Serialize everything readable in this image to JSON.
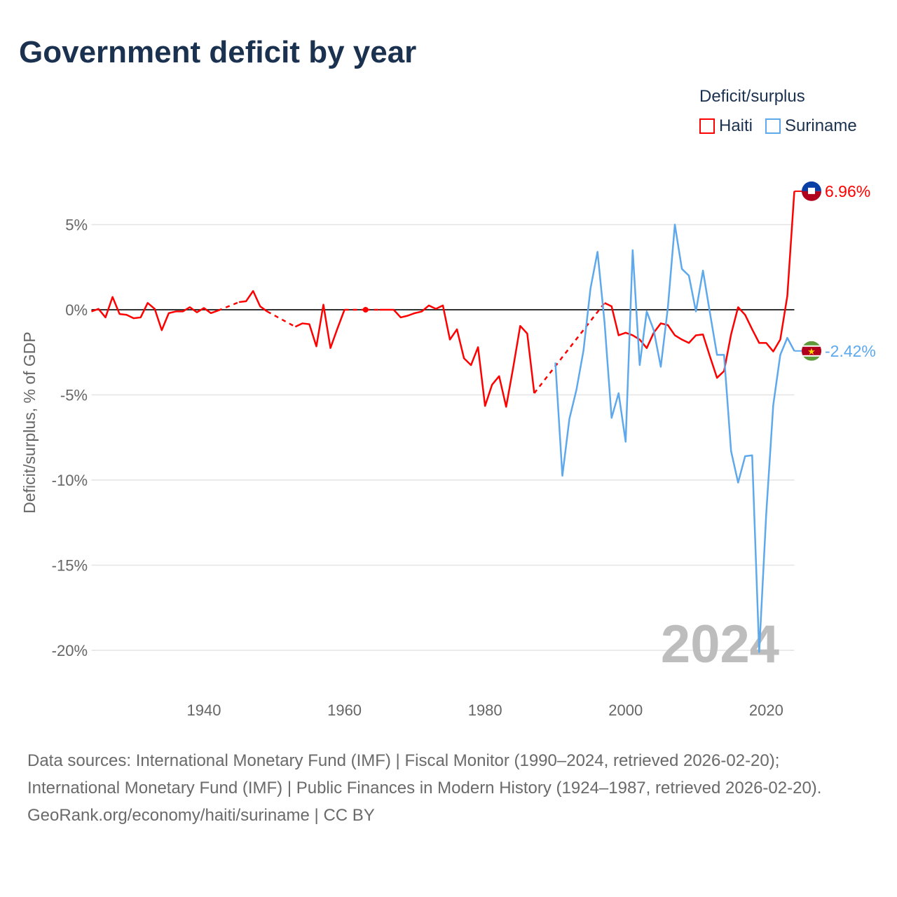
{
  "title": "Government deficit by year",
  "legend": {
    "title": "Deficit/surplus",
    "items": [
      {
        "label": "Haiti",
        "color": "#ff0000"
      },
      {
        "label": "Suriname",
        "color": "#5ea8ec"
      }
    ]
  },
  "year_watermark": "2024",
  "footer": {
    "sources": "Data sources: International Monetary Fund (IMF) | Fiscal Monitor (1990–2024, retrieved 2026-02-20); International Monetary Fund (IMF) | Public Finances in Modern History (1924–1987, retrieved 2026-02-20).",
    "credit": "GeoRank.org/economy/haiti/suriname | CC BY"
  },
  "chart_data": {
    "type": "line",
    "title": "Government deficit by year",
    "xlabel": "",
    "ylabel": "Deficit/surplus, % of GDP",
    "xlim": [
      1924,
      2024
    ],
    "ylim": [
      -22,
      8
    ],
    "x_ticks": [
      1940,
      1960,
      1980,
      2000,
      2020
    ],
    "x_tick_labels": [
      "1940",
      "1960",
      "1980",
      "2000",
      "2020"
    ],
    "y_ticks": [
      5,
      0,
      -5,
      -10,
      -15,
      -20
    ],
    "y_tick_labels": [
      "5%",
      "0%",
      "-5%",
      "-10%",
      "-15%",
      "-20%"
    ],
    "grid": true,
    "legend_position": "top-right",
    "series": [
      {
        "name": "Haiti",
        "color": "#ff0000",
        "end_label": "6.96%",
        "start_year": 1924,
        "values": [
          -0.1,
          0.05,
          -0.45,
          0.75,
          -0.25,
          -0.3,
          -0.5,
          -0.45,
          0.4,
          0.05,
          -1.2,
          -0.2,
          -0.1,
          -0.1,
          0.15,
          -0.15,
          0.1,
          -0.2,
          -0.05,
          null,
          null,
          0.45,
          0.5,
          1.1,
          0.2,
          -0.1,
          null,
          null,
          null,
          -1.0,
          -0.8,
          -0.85,
          -2.15,
          0.3,
          -2.25,
          -1.1,
          0,
          null,
          null,
          0,
          null,
          0,
          0,
          0,
          -0.45,
          -0.35,
          -0.2,
          -0.1,
          0.25,
          0.05,
          0.25,
          -1.75,
          -1.15,
          -2.85,
          -3.25,
          -2.2,
          -5.65,
          -4.4,
          -3.9,
          -5.7,
          -3.4,
          -0.95,
          -1.4,
          -4.9,
          null,
          null,
          null,
          null,
          null,
          null,
          null,
          null,
          null,
          0.4,
          0.2,
          -1.5,
          -1.35,
          -1.5,
          -1.75,
          -2.25,
          -1.35,
          -0.8,
          -0.9,
          -1.5,
          -1.75,
          -1.95,
          -1.5,
          -1.45,
          -2.75,
          -4.0,
          -3.6,
          -1.45,
          0.15,
          -0.3,
          -1.15,
          -1.95,
          -1.95,
          -2.45,
          -1.75,
          0.8,
          6.96
        ]
      },
      {
        "name": "Suriname",
        "color": "#5ea8ec",
        "end_label": "-2.42%",
        "start_year": 1990,
        "values": [
          -3.1,
          -9.75,
          -6.4,
          -4.7,
          -2.4,
          1.25,
          3.4,
          -0.75,
          -6.35,
          -4.9,
          -7.75,
          3.5,
          -3.25,
          -0.1,
          -1.2,
          -3.35,
          0.1,
          5.0,
          2.4,
          2.0,
          -0.1,
          2.3,
          -0.2,
          -2.65,
          -2.65,
          -8.3,
          -10.15,
          -8.6,
          -8.55,
          -20.1,
          -12.0,
          -5.6,
          -2.65,
          -1.65,
          -2.42
        ]
      }
    ]
  }
}
